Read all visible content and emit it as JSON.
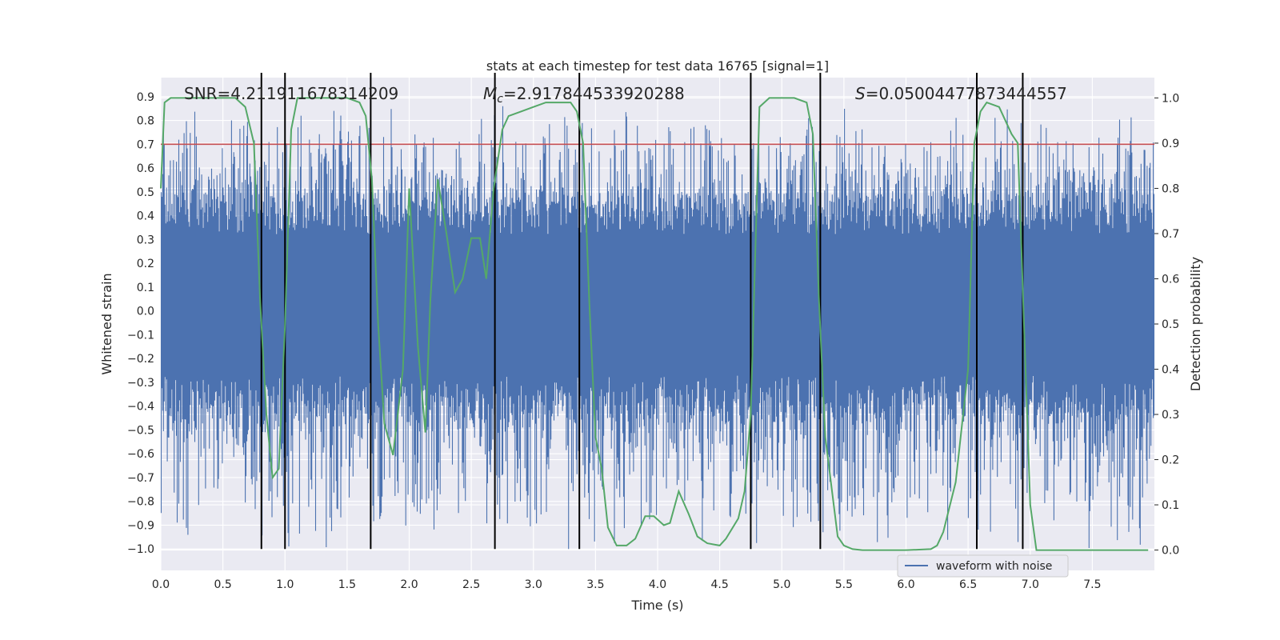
{
  "chart_data": {
    "type": "line",
    "title": "stats at each timestep for test data 16765 [signal=1]",
    "xlabel": "Time (s)",
    "ylabel": "Whitened strain",
    "y2label": "Detection probability",
    "xlim": [
      0.0,
      8.0
    ],
    "ylim": [
      -1.09,
      0.98
    ],
    "y2lim": [
      -0.045,
      1.045
    ],
    "xticks": [
      "0.0",
      "0.5",
      "1.0",
      "1.5",
      "2.0",
      "2.5",
      "3.0",
      "3.5",
      "4.0",
      "4.5",
      "5.0",
      "5.5",
      "6.0",
      "6.5",
      "7.0",
      "7.5"
    ],
    "yticks": [
      "0.9",
      "0.8",
      "0.7",
      "0.6",
      "0.5",
      "0.4",
      "0.3",
      "0.2",
      "0.1",
      "0.0",
      "-0.1",
      "-0.2",
      "-0.3",
      "-0.4",
      "-0.5",
      "-0.6",
      "-0.7",
      "-0.8",
      "-0.9",
      "-1.0"
    ],
    "y2ticks": [
      "1.0",
      "0.9",
      "0.8",
      "0.7",
      "0.6",
      "0.5",
      "0.4",
      "0.3",
      "0.2",
      "0.1",
      "0.0"
    ],
    "grid": true,
    "legend_position": "bottom-right",
    "annotations": {
      "snr": "SNR=4.211911678314209",
      "mc_symbol": "M",
      "mc_sub": "c",
      "mc_value": "=2.917844533920288",
      "s_symbol": "S",
      "s_value": "=0.05004477873444557"
    },
    "series": [
      {
        "name": "waveform with noise",
        "color": "#4c72b0",
        "axis": "left",
        "kind": "noise",
        "envelope_core": [
          -0.27,
          0.32
        ],
        "envelope_peaks": [
          -1.0,
          0.87
        ]
      },
      {
        "color": "#55a868",
        "axis": "right",
        "x": [
          0.0,
          0.03,
          0.08,
          0.2,
          0.4,
          0.6,
          0.68,
          0.75,
          0.8,
          0.85,
          0.9,
          0.95,
          1.0,
          1.05,
          1.1,
          1.2,
          1.3,
          1.5,
          1.6,
          1.65,
          1.7,
          1.75,
          1.8,
          1.87,
          1.95,
          2.0,
          2.07,
          2.13,
          2.17,
          2.23,
          2.3,
          2.37,
          2.43,
          2.5,
          2.57,
          2.62,
          2.68,
          2.75,
          2.8,
          2.9,
          3.0,
          3.1,
          3.2,
          3.3,
          3.35,
          3.4,
          3.45,
          3.5,
          3.55,
          3.6,
          3.67,
          3.75,
          3.82,
          3.9,
          3.97,
          4.05,
          4.1,
          4.17,
          4.25,
          4.32,
          4.4,
          4.5,
          4.55,
          4.65,
          4.7,
          4.75,
          4.82,
          4.9,
          5.1,
          5.2,
          5.25,
          5.3,
          5.35,
          5.45,
          5.5,
          5.57,
          5.65,
          5.8,
          6.0,
          6.2,
          6.25,
          6.3,
          6.4,
          6.5,
          6.55,
          6.6,
          6.65,
          6.75,
          6.85,
          6.9,
          6.95,
          7.0,
          7.05,
          7.1,
          7.3,
          7.5,
          7.7,
          7.95
        ],
        "y": [
          0.8,
          0.99,
          1.0,
          1.0,
          1.0,
          1.0,
          0.98,
          0.9,
          0.55,
          0.3,
          0.16,
          0.18,
          0.5,
          0.93,
          1.0,
          1.0,
          1.0,
          1.0,
          0.99,
          0.96,
          0.82,
          0.5,
          0.28,
          0.21,
          0.4,
          0.8,
          0.45,
          0.26,
          0.55,
          0.82,
          0.7,
          0.57,
          0.6,
          0.69,
          0.69,
          0.6,
          0.8,
          0.93,
          0.96,
          0.97,
          0.98,
          0.99,
          0.99,
          0.99,
          0.97,
          0.9,
          0.55,
          0.25,
          0.18,
          0.05,
          0.01,
          0.01,
          0.025,
          0.075,
          0.075,
          0.055,
          0.06,
          0.13,
          0.08,
          0.03,
          0.015,
          0.01,
          0.025,
          0.07,
          0.13,
          0.3,
          0.98,
          1.0,
          1.0,
          0.99,
          0.92,
          0.55,
          0.25,
          0.03,
          0.01,
          0.002,
          0.0,
          0.0,
          0.0,
          0.002,
          0.01,
          0.04,
          0.15,
          0.4,
          0.9,
          0.97,
          0.99,
          0.98,
          0.92,
          0.9,
          0.5,
          0.1,
          0.0,
          0.0,
          0.0,
          0.0,
          0.0,
          0.0
        ]
      },
      {
        "color": "#c44e52",
        "axis": "left",
        "kind": "threshold",
        "y": 0.7
      }
    ],
    "vertical_lines": [
      0.81,
      1.0,
      1.69,
      2.69,
      3.37,
      4.75,
      5.31,
      6.57,
      6.94
    ],
    "vline_range": [
      -1.0,
      1.0
    ]
  }
}
